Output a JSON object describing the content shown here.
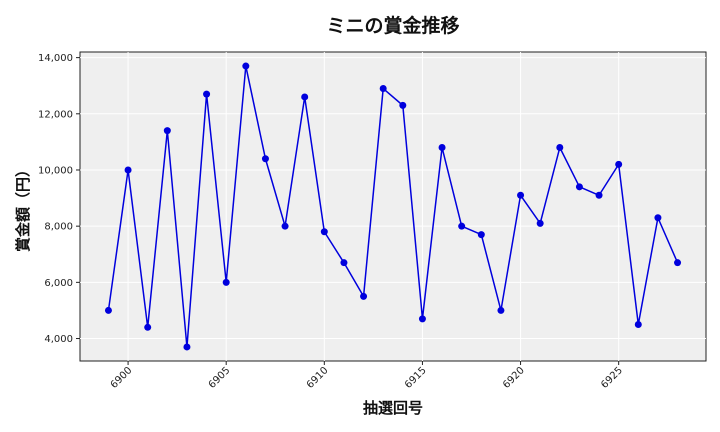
{
  "chart_data": {
    "type": "line",
    "title": "ミニの賞金推移",
    "xlabel": "抽選回号",
    "ylabel": "賞金額（円）",
    "x": [
      6899,
      6900,
      6901,
      6902,
      6903,
      6904,
      6905,
      6906,
      6907,
      6908,
      6909,
      6910,
      6911,
      6912,
      6913,
      6914,
      6915,
      6916,
      6917,
      6918,
      6919,
      6920,
      6921,
      6922,
      6923,
      6924,
      6925,
      6926,
      6927,
      6928
    ],
    "series": [
      {
        "values": [
          5000,
          10000,
          4400,
          11400,
          3700,
          12700,
          6000,
          13700,
          10400,
          8000,
          12600,
          7800,
          6700,
          5500,
          12900,
          12300,
          4700,
          10800,
          8000,
          7700,
          5000,
          9100,
          8100,
          10800,
          9400,
          9100,
          10200,
          4500,
          8300,
          6700
        ],
        "color": "#0000dd"
      }
    ],
    "xticks": [
      6900,
      6905,
      6910,
      6915,
      6920,
      6925
    ],
    "xtick_labels": [
      "6900",
      "6905",
      "6910",
      "6915",
      "6920",
      "6925"
    ],
    "yticks": [
      4000,
      6000,
      8000,
      10000,
      12000,
      14000
    ],
    "ytick_labels": [
      "4,000",
      "6,000",
      "8,000",
      "10,000",
      "12,000",
      "14,000"
    ],
    "xlim": [
      6897.55,
      6929.45
    ],
    "ylim": [
      3200,
      14200
    ],
    "grid": true,
    "background": "#efefef"
  }
}
